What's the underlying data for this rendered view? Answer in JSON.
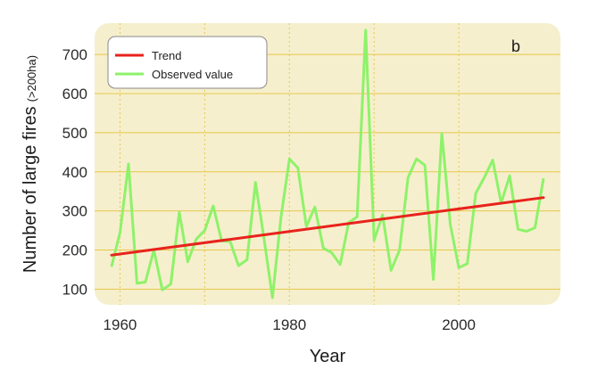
{
  "chart_data": {
    "type": "line",
    "panel_label": "b",
    "xlabel": "Year",
    "ylabel_main": "Number of large fires",
    "ylabel_sub": "(>200ha)",
    "xlim": [
      1957,
      2012
    ],
    "ylim": [
      60,
      780
    ],
    "x_ticks": [
      1960,
      1980,
      2000
    ],
    "y_ticks": [
      100,
      200,
      300,
      400,
      500,
      600,
      700
    ],
    "x_grid": [
      1960,
      1970,
      1980,
      1990,
      2000
    ],
    "grid": true,
    "legend_position": "top-left",
    "colors": {
      "background": "#f6efcd",
      "grid": "#e6c84c",
      "trend": "#e8231c",
      "observed": "#8ef26a"
    },
    "series": [
      {
        "name": "Trend",
        "x": [
          1959,
          2010
        ],
        "values": [
          187,
          334
        ]
      },
      {
        "name": "Observed value",
        "x": [
          1959,
          1960,
          1961,
          1962,
          1963,
          1964,
          1965,
          1966,
          1967,
          1968,
          1969,
          1970,
          1971,
          1972,
          1973,
          1974,
          1975,
          1976,
          1977,
          1978,
          1979,
          1980,
          1981,
          1982,
          1983,
          1984,
          1985,
          1986,
          1987,
          1988,
          1989,
          1990,
          1991,
          1992,
          1993,
          1994,
          1995,
          1996,
          1997,
          1998,
          1999,
          2000,
          2001,
          2002,
          2003,
          2004,
          2005,
          2006,
          2007,
          2008,
          2009,
          2010
        ],
        "values": [
          158,
          245,
          420,
          115,
          118,
          200,
          98,
          113,
          297,
          170,
          228,
          250,
          313,
          223,
          222,
          160,
          175,
          373,
          230,
          78,
          283,
          433,
          410,
          260,
          310,
          205,
          193,
          163,
          270,
          285,
          762,
          225,
          290,
          148,
          200,
          385,
          433,
          417,
          125,
          498,
          265,
          155,
          165,
          345,
          385,
          430,
          320,
          390,
          253,
          248,
          257,
          383
        ]
      }
    ]
  }
}
